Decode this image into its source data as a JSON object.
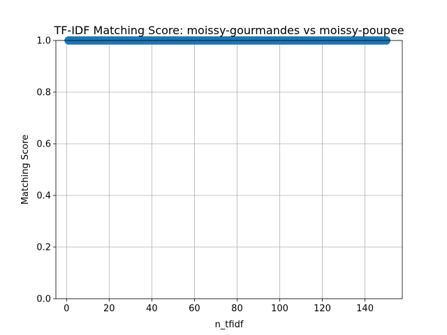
{
  "chart_data": {
    "type": "line",
    "title": "TF-IDF Matching Score: moissy-gourmandes vs moissy-poupee",
    "xlabel": "n_tfidf",
    "ylabel": "Matching Score",
    "xlim": [
      -5,
      157.5
    ],
    "ylim": [
      0,
      1.0
    ],
    "xticks": [
      0,
      20,
      40,
      60,
      80,
      100,
      120,
      140
    ],
    "yticks": [
      0.0,
      0.2,
      0.4,
      0.6,
      0.8,
      1.0
    ],
    "xtick_labels": [
      "0",
      "20",
      "40",
      "60",
      "80",
      "100",
      "120",
      "140"
    ],
    "ytick_labels": [
      "0.0",
      "0.2",
      "0.4",
      "0.6",
      "0.8",
      "1.0"
    ],
    "grid": true,
    "series": [
      {
        "color": "#1f77b4",
        "marker": "circle",
        "x_range": [
          1,
          150
        ],
        "x_step": 1,
        "value": 1.0
      }
    ]
  }
}
